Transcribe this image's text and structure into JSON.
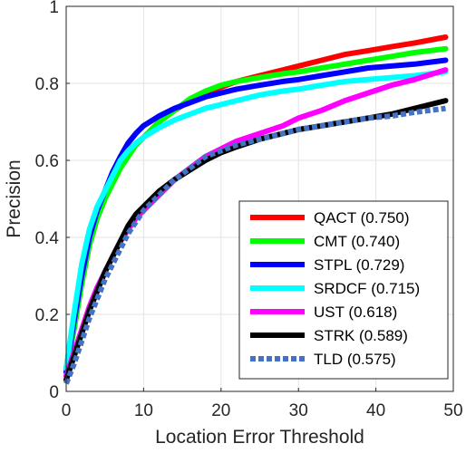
{
  "chart_data": {
    "type": "line",
    "title": "",
    "xlabel": "Location Error Threshold",
    "ylabel": "Precision",
    "xlim": [
      0,
      50
    ],
    "ylim": [
      0,
      1
    ],
    "xticks": [
      "0",
      "10",
      "20",
      "30",
      "40",
      "50"
    ],
    "yticks": [
      "0",
      "0.2",
      "0.4",
      "0.6",
      "0.8",
      "1"
    ],
    "grid": true,
    "legend_position": "bottom-right",
    "series": [
      {
        "name": "QACT (0.750)",
        "color": "#ff0000",
        "style": "solid",
        "x": [
          0,
          1,
          2,
          3,
          4,
          5,
          6,
          7,
          8,
          9,
          10,
          12,
          14,
          16,
          18,
          20,
          22,
          25,
          28,
          30,
          33,
          36,
          39,
          42,
          45,
          49
        ],
        "y": [
          0.06,
          0.16,
          0.28,
          0.38,
          0.45,
          0.5,
          0.55,
          0.59,
          0.62,
          0.64,
          0.66,
          0.7,
          0.73,
          0.755,
          0.775,
          0.79,
          0.805,
          0.82,
          0.835,
          0.845,
          0.86,
          0.875,
          0.885,
          0.895,
          0.905,
          0.92
        ]
      },
      {
        "name": "CMT (0.740)",
        "color": "#00ff00",
        "style": "solid",
        "x": [
          0,
          1,
          2,
          3,
          4,
          5,
          6,
          7,
          8,
          9,
          10,
          12,
          14,
          16,
          18,
          20,
          22,
          25,
          28,
          30,
          33,
          36,
          39,
          42,
          45,
          49
        ],
        "y": [
          0.06,
          0.16,
          0.28,
          0.38,
          0.45,
          0.5,
          0.54,
          0.58,
          0.61,
          0.64,
          0.66,
          0.7,
          0.73,
          0.76,
          0.78,
          0.795,
          0.805,
          0.815,
          0.825,
          0.83,
          0.84,
          0.85,
          0.86,
          0.87,
          0.88,
          0.89
        ]
      },
      {
        "name": "STPL (0.729)",
        "color": "#0000ff",
        "style": "solid",
        "x": [
          0,
          1,
          2,
          3,
          4,
          5,
          6,
          7,
          8,
          9,
          10,
          12,
          14,
          16,
          18,
          20,
          22,
          25,
          28,
          30,
          33,
          36,
          39,
          42,
          45,
          49
        ],
        "y": [
          0.05,
          0.18,
          0.3,
          0.4,
          0.47,
          0.52,
          0.57,
          0.61,
          0.645,
          0.67,
          0.69,
          0.715,
          0.735,
          0.75,
          0.765,
          0.775,
          0.785,
          0.795,
          0.805,
          0.81,
          0.82,
          0.83,
          0.84,
          0.845,
          0.85,
          0.86
        ]
      },
      {
        "name": "SRDCF (0.715)",
        "color": "#00ffff",
        "style": "solid",
        "x": [
          0,
          1,
          2,
          3,
          4,
          5,
          6,
          7,
          8,
          9,
          10,
          12,
          14,
          16,
          18,
          20,
          22,
          25,
          28,
          30,
          33,
          36,
          39,
          42,
          45,
          49
        ],
        "y": [
          0.06,
          0.2,
          0.33,
          0.42,
          0.48,
          0.52,
          0.56,
          0.6,
          0.625,
          0.645,
          0.66,
          0.685,
          0.705,
          0.72,
          0.735,
          0.745,
          0.755,
          0.77,
          0.78,
          0.785,
          0.795,
          0.805,
          0.81,
          0.815,
          0.82,
          0.83
        ]
      },
      {
        "name": "UST (0.618)",
        "color": "#ff00ff",
        "style": "solid",
        "x": [
          0,
          1,
          2,
          3,
          4,
          5,
          6,
          7,
          8,
          9,
          10,
          12,
          14,
          16,
          18,
          20,
          22,
          25,
          28,
          30,
          33,
          36,
          39,
          42,
          45,
          49
        ],
        "y": [
          0.04,
          0.1,
          0.16,
          0.22,
          0.27,
          0.31,
          0.35,
          0.39,
          0.42,
          0.45,
          0.47,
          0.51,
          0.55,
          0.58,
          0.61,
          0.63,
          0.65,
          0.67,
          0.69,
          0.71,
          0.73,
          0.755,
          0.775,
          0.795,
          0.81,
          0.835
        ]
      },
      {
        "name": "STRK (0.589)",
        "color": "#000000",
        "style": "solid",
        "x": [
          0,
          1,
          2,
          3,
          4,
          5,
          6,
          7,
          8,
          9,
          10,
          12,
          14,
          16,
          18,
          20,
          22,
          25,
          28,
          30,
          33,
          36,
          39,
          42,
          45,
          49
        ],
        "y": [
          0.03,
          0.09,
          0.15,
          0.21,
          0.26,
          0.31,
          0.35,
          0.39,
          0.43,
          0.46,
          0.48,
          0.52,
          0.55,
          0.575,
          0.6,
          0.62,
          0.635,
          0.655,
          0.67,
          0.68,
          0.69,
          0.7,
          0.71,
          0.72,
          0.735,
          0.755
        ]
      },
      {
        "name": "TLD (0.575)",
        "color": "#4472c4",
        "style": "dotted",
        "x": [
          0,
          1,
          2,
          3,
          4,
          5,
          6,
          7,
          8,
          9,
          10,
          12,
          14,
          16,
          18,
          20,
          22,
          25,
          28,
          30,
          33,
          36,
          39,
          42,
          45,
          49
        ],
        "y": [
          0.02,
          0.07,
          0.13,
          0.19,
          0.24,
          0.29,
          0.33,
          0.37,
          0.41,
          0.44,
          0.47,
          0.51,
          0.55,
          0.58,
          0.61,
          0.625,
          0.64,
          0.655,
          0.67,
          0.68,
          0.69,
          0.7,
          0.71,
          0.715,
          0.725,
          0.735
        ]
      }
    ]
  }
}
